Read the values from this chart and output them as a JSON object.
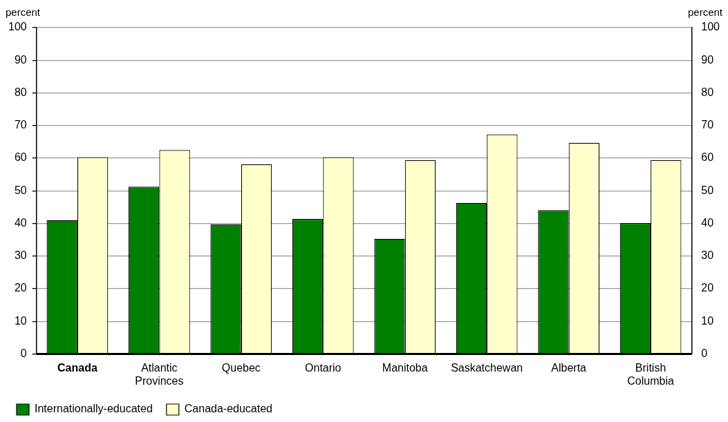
{
  "chart_data": {
    "type": "bar",
    "ylabel": "percent",
    "y2label": "percent",
    "categories": [
      "Canada",
      "Atlantic Provinces",
      "Quebec",
      "Ontario",
      "Manitoba",
      "Saskatchewan",
      "Alberta",
      "British Columbia"
    ],
    "series": [
      {
        "name": "Internationally-educated",
        "color": "#008000",
        "values": [
          41.0,
          51.3,
          39.7,
          41.4,
          35.3,
          46.3,
          44.1,
          40.1
        ]
      },
      {
        "name": "Canada-educated",
        "color": "#ffffcc",
        "values": [
          60.3,
          62.5,
          58.1,
          60.3,
          59.4,
          67.3,
          64.7,
          59.4
        ]
      }
    ],
    "ylim": [
      0,
      100
    ],
    "yticks": [
      0,
      10,
      20,
      30,
      40,
      50,
      60,
      70,
      80,
      90,
      100
    ],
    "y2lim": [
      0,
      100
    ],
    "y2ticks": [
      0,
      10,
      20,
      30,
      40,
      50,
      60,
      70,
      80,
      90,
      100
    ],
    "grid": "y",
    "legend": "bottom left"
  }
}
